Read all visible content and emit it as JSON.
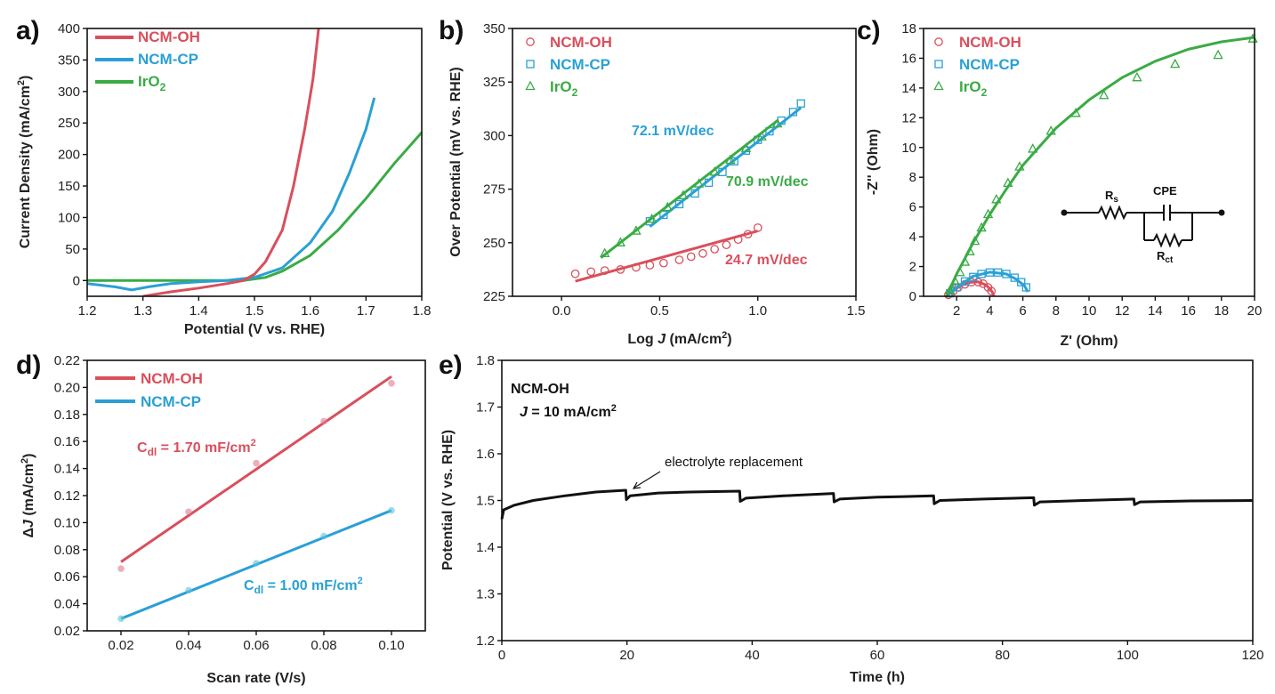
{
  "chart_data": [
    {
      "panel": "a)",
      "type": "line",
      "xlabel": "Potential (V vs. RHE)",
      "ylabel": "Current Density (mA/cm²)",
      "xlim": [
        1.2,
        1.8
      ],
      "ylim": [
        -25,
        400
      ],
      "xticks": [
        "1.2",
        "1.3",
        "1.4",
        "1.5",
        "1.6",
        "1.7",
        "1.8"
      ],
      "yticks": [
        "0",
        "50",
        "100",
        "150",
        "200",
        "250",
        "300",
        "350",
        "400"
      ],
      "legend": [
        "NCM-OH",
        "NCM-CP",
        "IrO₂"
      ],
      "colors": [
        "#d94f5c",
        "#2aa0d4",
        "#3aab45"
      ],
      "series": [
        {
          "name": "NCM-OH",
          "points": [
            [
              1.3,
              -25
            ],
            [
              1.35,
              -18
            ],
            [
              1.4,
              -12
            ],
            [
              1.45,
              -5
            ],
            [
              1.48,
              0
            ],
            [
              1.5,
              10
            ],
            [
              1.52,
              30
            ],
            [
              1.55,
              80
            ],
            [
              1.57,
              150
            ],
            [
              1.59,
              240
            ],
            [
              1.605,
              320
            ],
            [
              1.615,
              400
            ]
          ]
        },
        {
          "name": "NCM-CP",
          "points": [
            [
              1.2,
              -5
            ],
            [
              1.25,
              -10
            ],
            [
              1.28,
              -15
            ],
            [
              1.31,
              -10
            ],
            [
              1.35,
              -5
            ],
            [
              1.4,
              -2
            ],
            [
              1.45,
              0
            ],
            [
              1.5,
              5
            ],
            [
              1.55,
              20
            ],
            [
              1.6,
              60
            ],
            [
              1.64,
              110
            ],
            [
              1.67,
              170
            ],
            [
              1.7,
              240
            ],
            [
              1.715,
              290
            ]
          ]
        },
        {
          "name": "IrO₂",
          "points": [
            [
              1.2,
              0
            ],
            [
              1.4,
              0
            ],
            [
              1.48,
              0
            ],
            [
              1.52,
              5
            ],
            [
              1.55,
              15
            ],
            [
              1.6,
              40
            ],
            [
              1.65,
              80
            ],
            [
              1.7,
              130
            ],
            [
              1.75,
              185
            ],
            [
              1.8,
              235
            ]
          ]
        }
      ]
    },
    {
      "panel": "b)",
      "type": "scatter",
      "xlabel": "Log J  (mA/cm²)",
      "ylabel": "Over Potential (mV vs. RHE)",
      "xlim": [
        -0.25,
        1.5
      ],
      "ylim": [
        225,
        350
      ],
      "xticks": [
        "0.0",
        "0.5",
        "1.0",
        "1.5"
      ],
      "yticks": [
        "225",
        "250",
        "275",
        "300",
        "325",
        "350"
      ],
      "legend": [
        "NCM-OH",
        "NCM-CP",
        "IrO₂"
      ],
      "colors": [
        "#d94f5c",
        "#2aa0d4",
        "#3aab45"
      ],
      "series": [
        {
          "name": "NCM-OH",
          "marker": "circle",
          "points": [
            [
              0.07,
              235.5
            ],
            [
              0.15,
              236.5
            ],
            [
              0.22,
              237
            ],
            [
              0.3,
              237.5
            ],
            [
              0.38,
              238.5
            ],
            [
              0.45,
              239.5
            ],
            [
              0.52,
              240.5
            ],
            [
              0.6,
              242
            ],
            [
              0.66,
              243.5
            ],
            [
              0.72,
              245
            ],
            [
              0.78,
              247
            ],
            [
              0.84,
              249
            ],
            [
              0.9,
              251.5
            ],
            [
              0.95,
              254
            ],
            [
              1.0,
              257
            ]
          ],
          "fit": [
            [
              0.07,
              232
            ],
            [
              1.0,
              255.5
            ]
          ]
        },
        {
          "name": "NCM-CP",
          "marker": "square",
          "points": [
            [
              0.45,
              260
            ],
            [
              0.52,
              263
            ],
            [
              0.6,
              268
            ],
            [
              0.68,
              273
            ],
            [
              0.75,
              278
            ],
            [
              0.82,
              283
            ],
            [
              0.88,
              288
            ],
            [
              0.94,
              293
            ],
            [
              1.0,
              298
            ],
            [
              1.06,
              302
            ],
            [
              1.12,
              307
            ],
            [
              1.18,
              311
            ],
            [
              1.22,
              315
            ]
          ],
          "fit": [
            [
              0.45,
              257.5
            ],
            [
              1.22,
              313
            ]
          ]
        },
        {
          "name": "IrO₂",
          "marker": "triangle",
          "points": [
            [
              0.22,
              245
            ],
            [
              0.3,
              250
            ],
            [
              0.38,
              255.5
            ],
            [
              0.46,
              261
            ],
            [
              0.54,
              266.5
            ],
            [
              0.62,
              272
            ],
            [
              0.7,
              277.5
            ],
            [
              0.78,
              283
            ],
            [
              0.86,
              288.5
            ],
            [
              0.94,
              294
            ],
            [
              1.02,
              299.5
            ],
            [
              1.1,
              305.5
            ]
          ],
          "fit": [
            [
              0.2,
              243
            ],
            [
              1.1,
              307
            ]
          ]
        }
      ],
      "annotations": [
        {
          "text": "72.1 mV/dec",
          "color": "#2aa0d4"
        },
        {
          "text": "70.9 mV/dec",
          "color": "#3aab45"
        },
        {
          "text": "24.7 mV/dec",
          "color": "#d94f5c"
        }
      ]
    },
    {
      "panel": "c)",
      "type": "scatter",
      "xlabel": "Z' (Ohm)",
      "ylabel": "-Z'' (Ohm)",
      "xlim": [
        0,
        20
      ],
      "ylim": [
        0,
        18
      ],
      "xticks": [
        "2",
        "4",
        "6",
        "8",
        "10",
        "12",
        "14",
        "16",
        "18",
        "20"
      ],
      "yticks": [
        "0",
        "2",
        "4",
        "6",
        "8",
        "10",
        "12",
        "14",
        "16",
        "18"
      ],
      "legend": [
        "NCM-OH",
        "NCM-CP",
        "IrO₂"
      ],
      "colors": [
        "#d94f5c",
        "#2aa0d4",
        "#3aab45"
      ],
      "circuit": {
        "rs": "R",
        "rs_sub": "s",
        "cpe": "CPE",
        "rct": "R",
        "rct_sub": "ct"
      },
      "series": [
        {
          "name": "NCM-OH",
          "marker": "circle",
          "points": [
            [
              1.5,
              0.1
            ],
            [
              1.8,
              0.35
            ],
            [
              2.1,
              0.6
            ],
            [
              2.5,
              0.8
            ],
            [
              2.9,
              0.95
            ],
            [
              3.3,
              0.95
            ],
            [
              3.6,
              0.85
            ],
            [
              3.9,
              0.6
            ],
            [
              4.1,
              0.35
            ]
          ],
          "fit": [
            [
              1.4,
              0
            ],
            [
              1.8,
              0.4
            ],
            [
              2.3,
              0.75
            ],
            [
              2.8,
              0.93
            ],
            [
              3.3,
              0.97
            ],
            [
              3.8,
              0.75
            ],
            [
              4.15,
              0.3
            ],
            [
              4.25,
              0
            ]
          ]
        },
        {
          "name": "NCM-CP",
          "marker": "square",
          "points": [
            [
              1.6,
              0.2
            ],
            [
              2.0,
              0.6
            ],
            [
              2.5,
              1.0
            ],
            [
              3.0,
              1.3
            ],
            [
              3.5,
              1.5
            ],
            [
              4.0,
              1.6
            ],
            [
              4.5,
              1.6
            ],
            [
              5.0,
              1.5
            ],
            [
              5.5,
              1.25
            ],
            [
              5.9,
              0.95
            ],
            [
              6.2,
              0.6
            ]
          ],
          "fit": [
            [
              1.4,
              0
            ],
            [
              2.0,
              0.6
            ],
            [
              3.0,
              1.35
            ],
            [
              4.0,
              1.62
            ],
            [
              5.0,
              1.5
            ],
            [
              5.6,
              1.15
            ],
            [
              6.1,
              0.7
            ],
            [
              6.3,
              0.3
            ]
          ]
        },
        {
          "name": "IrO₂",
          "marker": "triangle",
          "points": [
            [
              1.6,
              0.4
            ],
            [
              1.9,
              1.0
            ],
            [
              2.2,
              1.6
            ],
            [
              2.5,
              2.3
            ],
            [
              2.8,
              3.0
            ],
            [
              3.1,
              3.7
            ],
            [
              3.5,
              4.6
            ],
            [
              3.9,
              5.5
            ],
            [
              4.4,
              6.5
            ],
            [
              5.1,
              7.6
            ],
            [
              5.8,
              8.7
            ],
            [
              6.6,
              9.9
            ],
            [
              7.7,
              11.1
            ],
            [
              9.2,
              12.3
            ],
            [
              10.9,
              13.5
            ],
            [
              12.9,
              14.7
            ],
            [
              15.2,
              15.6
            ],
            [
              17.8,
              16.2
            ],
            [
              19.9,
              17.3
            ]
          ],
          "fit": [
            [
              1.4,
              0
            ],
            [
              2.0,
              1.5
            ],
            [
              3.0,
              3.6
            ],
            [
              4.0,
              5.5
            ],
            [
              5.0,
              7.2
            ],
            [
              6.0,
              8.8
            ],
            [
              8.0,
              11.3
            ],
            [
              10.0,
              13.2
            ],
            [
              12.0,
              14.7
            ],
            [
              14.0,
              15.8
            ],
            [
              16.0,
              16.6
            ],
            [
              18.0,
              17.1
            ],
            [
              20.0,
              17.4
            ]
          ]
        }
      ]
    },
    {
      "panel": "d)",
      "type": "scatter",
      "xlabel": "Scan rate (V/s)",
      "ylabel": "ΔJ (mA/cm²)",
      "xlim": [
        0.01,
        0.11
      ],
      "ylim": [
        0.02,
        0.22
      ],
      "xticks": [
        "0.02",
        "0.04",
        "0.06",
        "0.08",
        "0.10"
      ],
      "yticks": [
        "0.02",
        "0.04",
        "0.06",
        "0.08",
        "0.10",
        "0.12",
        "0.14",
        "0.16",
        "0.18",
        "0.20",
        "0.22"
      ],
      "legend": [
        "NCM-OH",
        "NCM-CP"
      ],
      "colors": [
        "#d94f5c",
        "#2aa0d4"
      ],
      "series": [
        {
          "name": "NCM-OH",
          "points": [
            [
              0.02,
              0.066
            ],
            [
              0.04,
              0.108
            ],
            [
              0.06,
              0.144
            ],
            [
              0.08,
              0.175
            ],
            [
              0.1,
              0.203
            ]
          ],
          "fit": [
            [
              0.02,
              0.071
            ],
            [
              0.1,
              0.208
            ]
          ]
        },
        {
          "name": "NCM-CP",
          "points": [
            [
              0.02,
              0.029
            ],
            [
              0.04,
              0.05
            ],
            [
              0.06,
              0.07
            ],
            [
              0.08,
              0.09
            ],
            [
              0.1,
              0.109
            ]
          ],
          "fit": [
            [
              0.02,
              0.029
            ],
            [
              0.1,
              0.109
            ]
          ]
        }
      ],
      "annotations": [
        {
          "main": "C",
          "sub": "dl",
          "rest": " = 1.70 mF/cm",
          "sup": "2",
          "color": "#d94f5c"
        },
        {
          "main": "C",
          "sub": "dl",
          "rest": " = 1.00 mF/cm",
          "sup": "2",
          "color": "#2aa0d4"
        }
      ]
    },
    {
      "panel": "e)",
      "type": "line",
      "xlabel": "Time (h)",
      "ylabel": "Potential (V vs. RHE)",
      "xlim": [
        0,
        120
      ],
      "ylim": [
        1.2,
        1.8
      ],
      "xticks": [
        "0",
        "20",
        "40",
        "60",
        "80",
        "100",
        "120"
      ],
      "yticks": [
        "1.2",
        "1.3",
        "1.4",
        "1.5",
        "1.6",
        "1.7",
        "1.8"
      ],
      "title_lines": [
        "NCM-OH",
        "J = 10 mA/cm²"
      ],
      "annotation": "electrolyte replacement",
      "color": "#111111",
      "series": [
        {
          "name": "NCM-OH",
          "points": [
            [
              0,
              1.46
            ],
            [
              0.3,
              1.48
            ],
            [
              2,
              1.49
            ],
            [
              5,
              1.5
            ],
            [
              10,
              1.51
            ],
            [
              15,
              1.518
            ],
            [
              19.8,
              1.522
            ],
            [
              19.9,
              1.502
            ],
            [
              20.5,
              1.51
            ],
            [
              25,
              1.516
            ],
            [
              30,
              1.518
            ],
            [
              38,
              1.52
            ],
            [
              38.1,
              1.498
            ],
            [
              39,
              1.505
            ],
            [
              45,
              1.51
            ],
            [
              53,
              1.515
            ],
            [
              53.1,
              1.497
            ],
            [
              54,
              1.503
            ],
            [
              60,
              1.507
            ],
            [
              69,
              1.51
            ],
            [
              69.1,
              1.493
            ],
            [
              70,
              1.5
            ],
            [
              77,
              1.503
            ],
            [
              85,
              1.506
            ],
            [
              85.1,
              1.49
            ],
            [
              86,
              1.497
            ],
            [
              93,
              1.5
            ],
            [
              101,
              1.503
            ],
            [
              101.1,
              1.491
            ],
            [
              102,
              1.497
            ],
            [
              110,
              1.499
            ],
            [
              120,
              1.5
            ]
          ]
        }
      ]
    }
  ]
}
